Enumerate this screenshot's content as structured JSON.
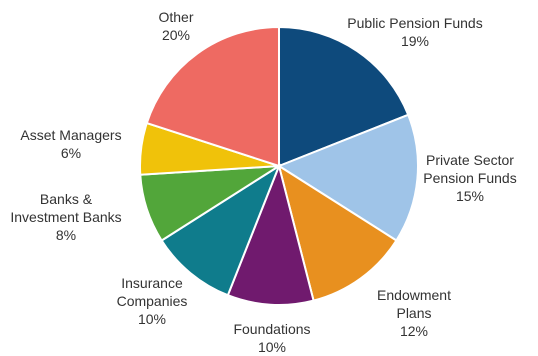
{
  "chart_data": {
    "type": "pie",
    "start_angle_deg": 0,
    "direction": "clockwise",
    "slices": [
      {
        "label_lines": [
          "Public Pension Funds"
        ],
        "value_label": "19%",
        "value": 19,
        "color": "#0e4a7c"
      },
      {
        "label_lines": [
          "Private Sector",
          "Pension Funds"
        ],
        "value_label": "15%",
        "value": 15,
        "color": "#9fc4e8"
      },
      {
        "label_lines": [
          "Endowment",
          "Plans"
        ],
        "value_label": "12%",
        "value": 12,
        "color": "#e8901f"
      },
      {
        "label_lines": [
          "Foundations"
        ],
        "value_label": "10%",
        "value": 10,
        "color": "#701a6e"
      },
      {
        "label_lines": [
          "Insurance",
          "Companies"
        ],
        "value_label": "10%",
        "value": 10,
        "color": "#0f7c8c"
      },
      {
        "label_lines": [
          "Banks &",
          "Investment Banks"
        ],
        "value_label": "8%",
        "value": 8,
        "color": "#52a63a"
      },
      {
        "label_lines": [
          "Asset Managers"
        ],
        "value_label": "6%",
        "value": 6,
        "color": "#f0c20a"
      },
      {
        "label_lines": [
          "Other"
        ],
        "value_label": "20%",
        "value": 20,
        "color": "#ee6a62"
      }
    ]
  }
}
